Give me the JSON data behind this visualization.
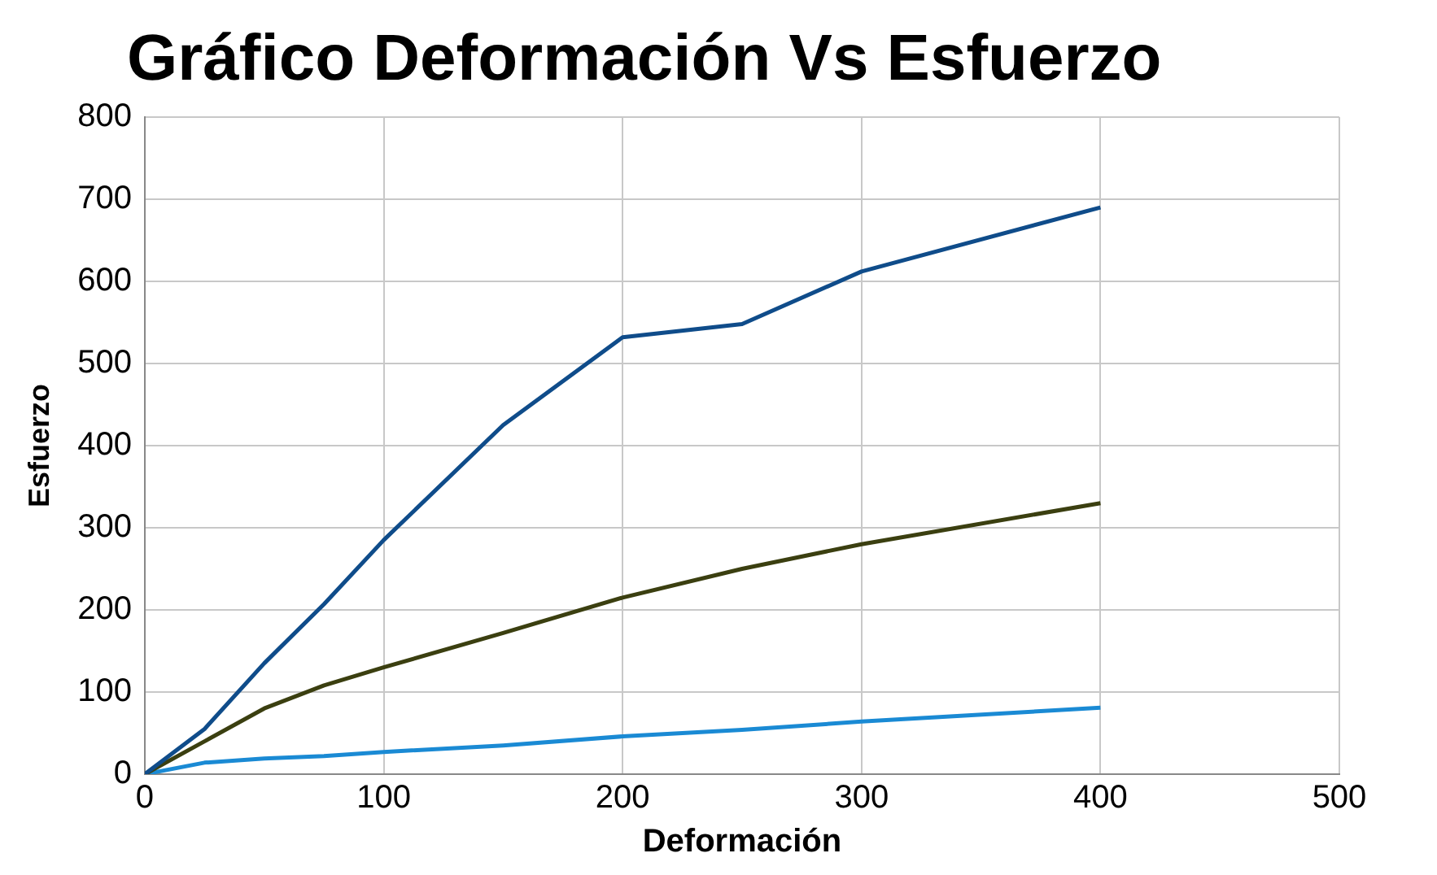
{
  "chart_data": {
    "type": "line",
    "title": "Gráfico Deformación Vs Esfuerzo",
    "xlabel": "Deformación",
    "ylabel": "Esfuerzo",
    "x": [
      0,
      25,
      50,
      75,
      100,
      150,
      200,
      250,
      300,
      400
    ],
    "series": [
      {
        "color": "#0f4c8a",
        "values": [
          0,
          55,
          135,
          207,
          285,
          425,
          532,
          548,
          612,
          690
        ]
      },
      {
        "color": "#3b3f10",
        "values": [
          0,
          40,
          80,
          108,
          130,
          172,
          215,
          250,
          280,
          330
        ]
      },
      {
        "color": "#1a8ad4",
        "values": [
          0,
          14,
          19,
          22,
          27,
          35,
          46,
          54,
          64,
          81
        ]
      }
    ],
    "xlim": [
      0,
      500
    ],
    "xticks": [
      0,
      100,
      200,
      300,
      400,
      500
    ],
    "ylim": [
      0,
      800
    ],
    "yticks": [
      0,
      100,
      200,
      300,
      400,
      500,
      600,
      700,
      800
    ],
    "grid": true,
    "legend": false,
    "marker": "none",
    "line_style": "solid"
  }
}
